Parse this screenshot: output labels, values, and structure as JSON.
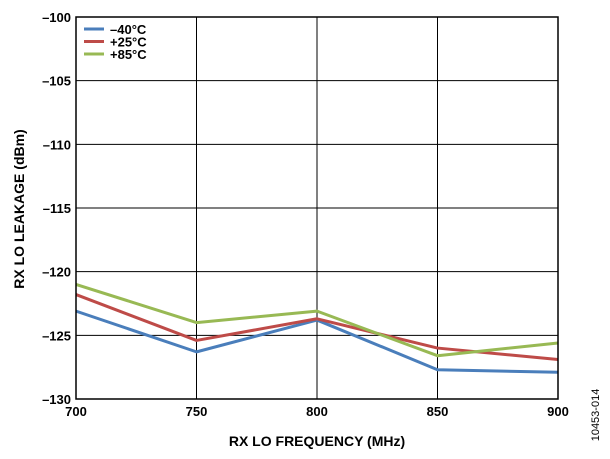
{
  "chart_data": {
    "type": "line",
    "xlabel": "RX LO FREQUENCY (MHz)",
    "ylabel": "RX LO LEAKAGE (dBm)",
    "xlim": [
      700,
      900
    ],
    "ylim": [
      -130,
      -100
    ],
    "x_ticks": [
      700,
      750,
      800,
      850,
      900
    ],
    "y_ticks": [
      -100,
      -105,
      -110,
      -115,
      -120,
      -125,
      -130
    ],
    "y_tick_labels": [
      "–100",
      "–105",
      "–110",
      "–115",
      "–120",
      "–125",
      "–130"
    ],
    "grid": true,
    "legend_position": "top-left",
    "series": [
      {
        "name": "–40°C",
        "color": "#4a7ebb",
        "x": [
          700,
          750,
          800,
          850,
          900
        ],
        "y": [
          -123.1,
          -126.3,
          -123.8,
          -127.7,
          -127.9
        ]
      },
      {
        "name": "+25°C",
        "color": "#be4b48",
        "x": [
          700,
          750,
          800,
          850,
          900
        ],
        "y": [
          -121.8,
          -125.4,
          -123.7,
          -126.0,
          -126.9
        ]
      },
      {
        "name": "+85°C",
        "color": "#98b954",
        "x": [
          700,
          750,
          800,
          850,
          900
        ],
        "y": [
          -121.0,
          -124.0,
          -123.1,
          -126.6,
          -125.6
        ]
      }
    ],
    "figure_id": "10453-014"
  }
}
